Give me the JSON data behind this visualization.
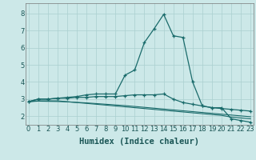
{
  "xlabel": "Humidex (Indice chaleur)",
  "background_color": "#cce8e8",
  "grid_color": "#aacfcf",
  "line_color": "#1a6b6b",
  "x_values": [
    0,
    1,
    2,
    3,
    4,
    5,
    6,
    7,
    8,
    9,
    10,
    11,
    12,
    13,
    14,
    15,
    16,
    17,
    18,
    19,
    20,
    21,
    22,
    23
  ],
  "ylim": [
    1.5,
    8.6
  ],
  "xlim": [
    -0.3,
    23.3
  ],
  "series": [
    [
      2.85,
      3.0,
      3.0,
      3.05,
      3.1,
      3.15,
      3.25,
      3.3,
      3.3,
      3.3,
      4.4,
      4.7,
      6.3,
      7.1,
      7.95,
      6.7,
      6.6,
      4.0,
      2.6,
      2.5,
      2.5,
      1.85,
      1.75,
      1.65
    ],
    [
      2.85,
      3.0,
      3.0,
      3.05,
      3.05,
      3.1,
      3.1,
      3.15,
      3.15,
      3.15,
      3.2,
      3.25,
      3.25,
      3.25,
      3.3,
      3.0,
      2.8,
      2.7,
      2.6,
      2.5,
      2.45,
      2.4,
      2.35,
      2.3
    ],
    [
      2.85,
      2.9,
      2.9,
      2.9,
      2.85,
      2.8,
      2.75,
      2.7,
      2.65,
      2.6,
      2.55,
      2.5,
      2.45,
      2.4,
      2.35,
      2.3,
      2.25,
      2.2,
      2.15,
      2.1,
      2.05,
      1.95,
      1.9,
      1.85
    ],
    [
      2.85,
      2.88,
      2.87,
      2.86,
      2.84,
      2.81,
      2.78,
      2.74,
      2.7,
      2.66,
      2.62,
      2.57,
      2.52,
      2.47,
      2.42,
      2.37,
      2.32,
      2.27,
      2.22,
      2.17,
      2.12,
      2.07,
      2.02,
      1.97
    ]
  ],
  "tick_fontsize": 6.0,
  "label_fontsize": 7.5,
  "label_fontweight": "bold"
}
